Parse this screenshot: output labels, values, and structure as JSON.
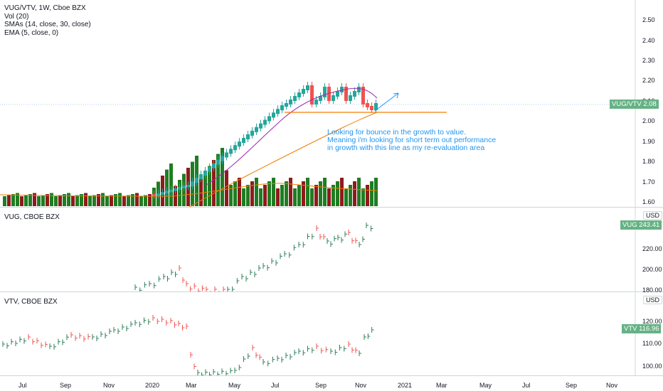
{
  "colors": {
    "up": "#26a69a",
    "down": "#ef5350",
    "vol_up": "#1e7d22",
    "vol_down": "#8e1b1b",
    "sma_orange": "#f57c00",
    "sma_pink": "#9c27b0",
    "line_blue": "#2196f3",
    "tag_green": "#66b285"
  },
  "main": {
    "legend": [
      "VUG/VTV, 1W, Cboe BZX",
      "Vol (20)",
      "SMAs (14, close, 30, close)",
      "EMA (5, close, 0)"
    ],
    "price_label": "VUG/VTV",
    "price_value": "2.08",
    "y_ticks": [
      "2.50",
      "2.40",
      "2.30",
      "2.20",
      "2.10",
      "2.00",
      "1.90",
      "1.80",
      "1.70",
      "1.60"
    ],
    "annotation": [
      "Looking for bounce in the growth to value.",
      "Meaning i'm looking for short term out performance",
      "in growth with this line as my re-evaluation area"
    ]
  },
  "vug": {
    "legend": "VUG, CBOE BZX",
    "currency": "USD",
    "price_label": "VUG",
    "price_value": "243.41",
    "y_ticks": [
      "220.00",
      "200.00",
      "180.00"
    ]
  },
  "vtv": {
    "legend": "VTV, CBOE BZX",
    "currency": "USD",
    "price_label": "VTV",
    "price_value": "116.96",
    "y_ticks": [
      "120.00",
      "110.00",
      "100.00"
    ]
  },
  "x_axis": [
    "Jul",
    "Sep",
    "Nov",
    "2020",
    "Mar",
    "May",
    "Jul",
    "Sep",
    "Nov",
    "2021",
    "Mar",
    "May",
    "Jul",
    "Sep",
    "Nov"
  ]
}
